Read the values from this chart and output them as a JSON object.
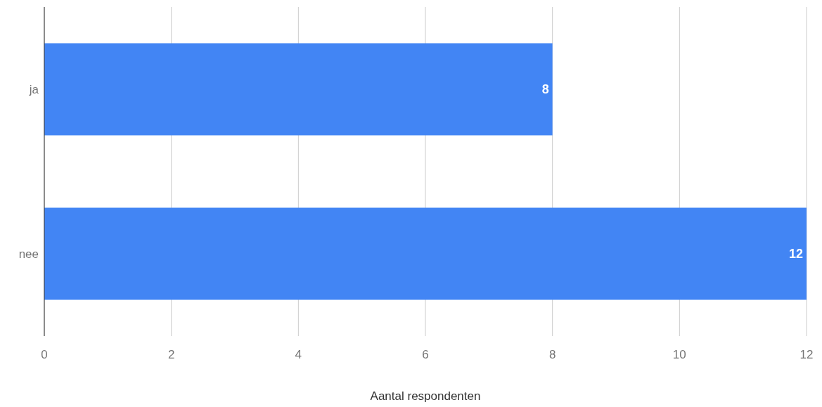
{
  "chart_data": {
    "type": "bar",
    "orientation": "horizontal",
    "categories": [
      "ja",
      "nee"
    ],
    "values": [
      8,
      12
    ],
    "color": "#4285f4",
    "xlim": [
      0,
      12
    ],
    "xticks": [
      0,
      2,
      4,
      6,
      8,
      10,
      12
    ],
    "xlabel": "Aantal respondenten",
    "grid": "x",
    "data_labels": true
  }
}
